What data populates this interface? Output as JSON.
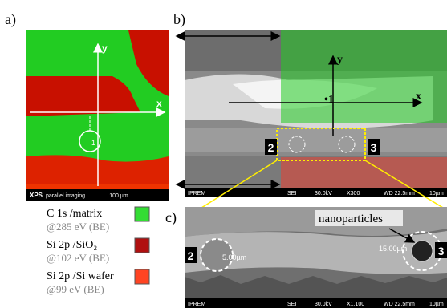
{
  "panels": {
    "a": {
      "label": "a)",
      "axis_y": "y",
      "axis_x": "x",
      "marker": "1",
      "footer_bold": "XPS",
      "footer": "parallel imaging",
      "scale": "100 µm"
    },
    "b": {
      "label": "b)",
      "axis_y": "y",
      "axis_x": "x",
      "point": "•1",
      "region_left": "2",
      "region_right": "3",
      "footer": [
        "IPREM",
        "SEI",
        "30.0kV",
        "X300",
        "WD 22.5mm",
        "10µm"
      ]
    },
    "c": {
      "label": "c)",
      "annotation": "nanoparticles",
      "region_left": "2",
      "region_right": "3",
      "size_left": "5.00µm",
      "size_right": "15.00µm",
      "footer": [
        "IPREM",
        "SEI",
        "30.0kV",
        "X1,100",
        "WD 22.5mm",
        "10µm"
      ]
    }
  },
  "legend": [
    {
      "line1": "C  1s /matrix",
      "line2": "@285 eV (BE)",
      "color": "#33dd33"
    },
    {
      "line1": "Si 2p /SiO₂",
      "line2": "@102 eV (BE)",
      "color": "#b01010"
    },
    {
      "line1": "Si 2p /Si wafer",
      "line2": "@99 eV (BE)",
      "color": "#ff4422"
    }
  ]
}
